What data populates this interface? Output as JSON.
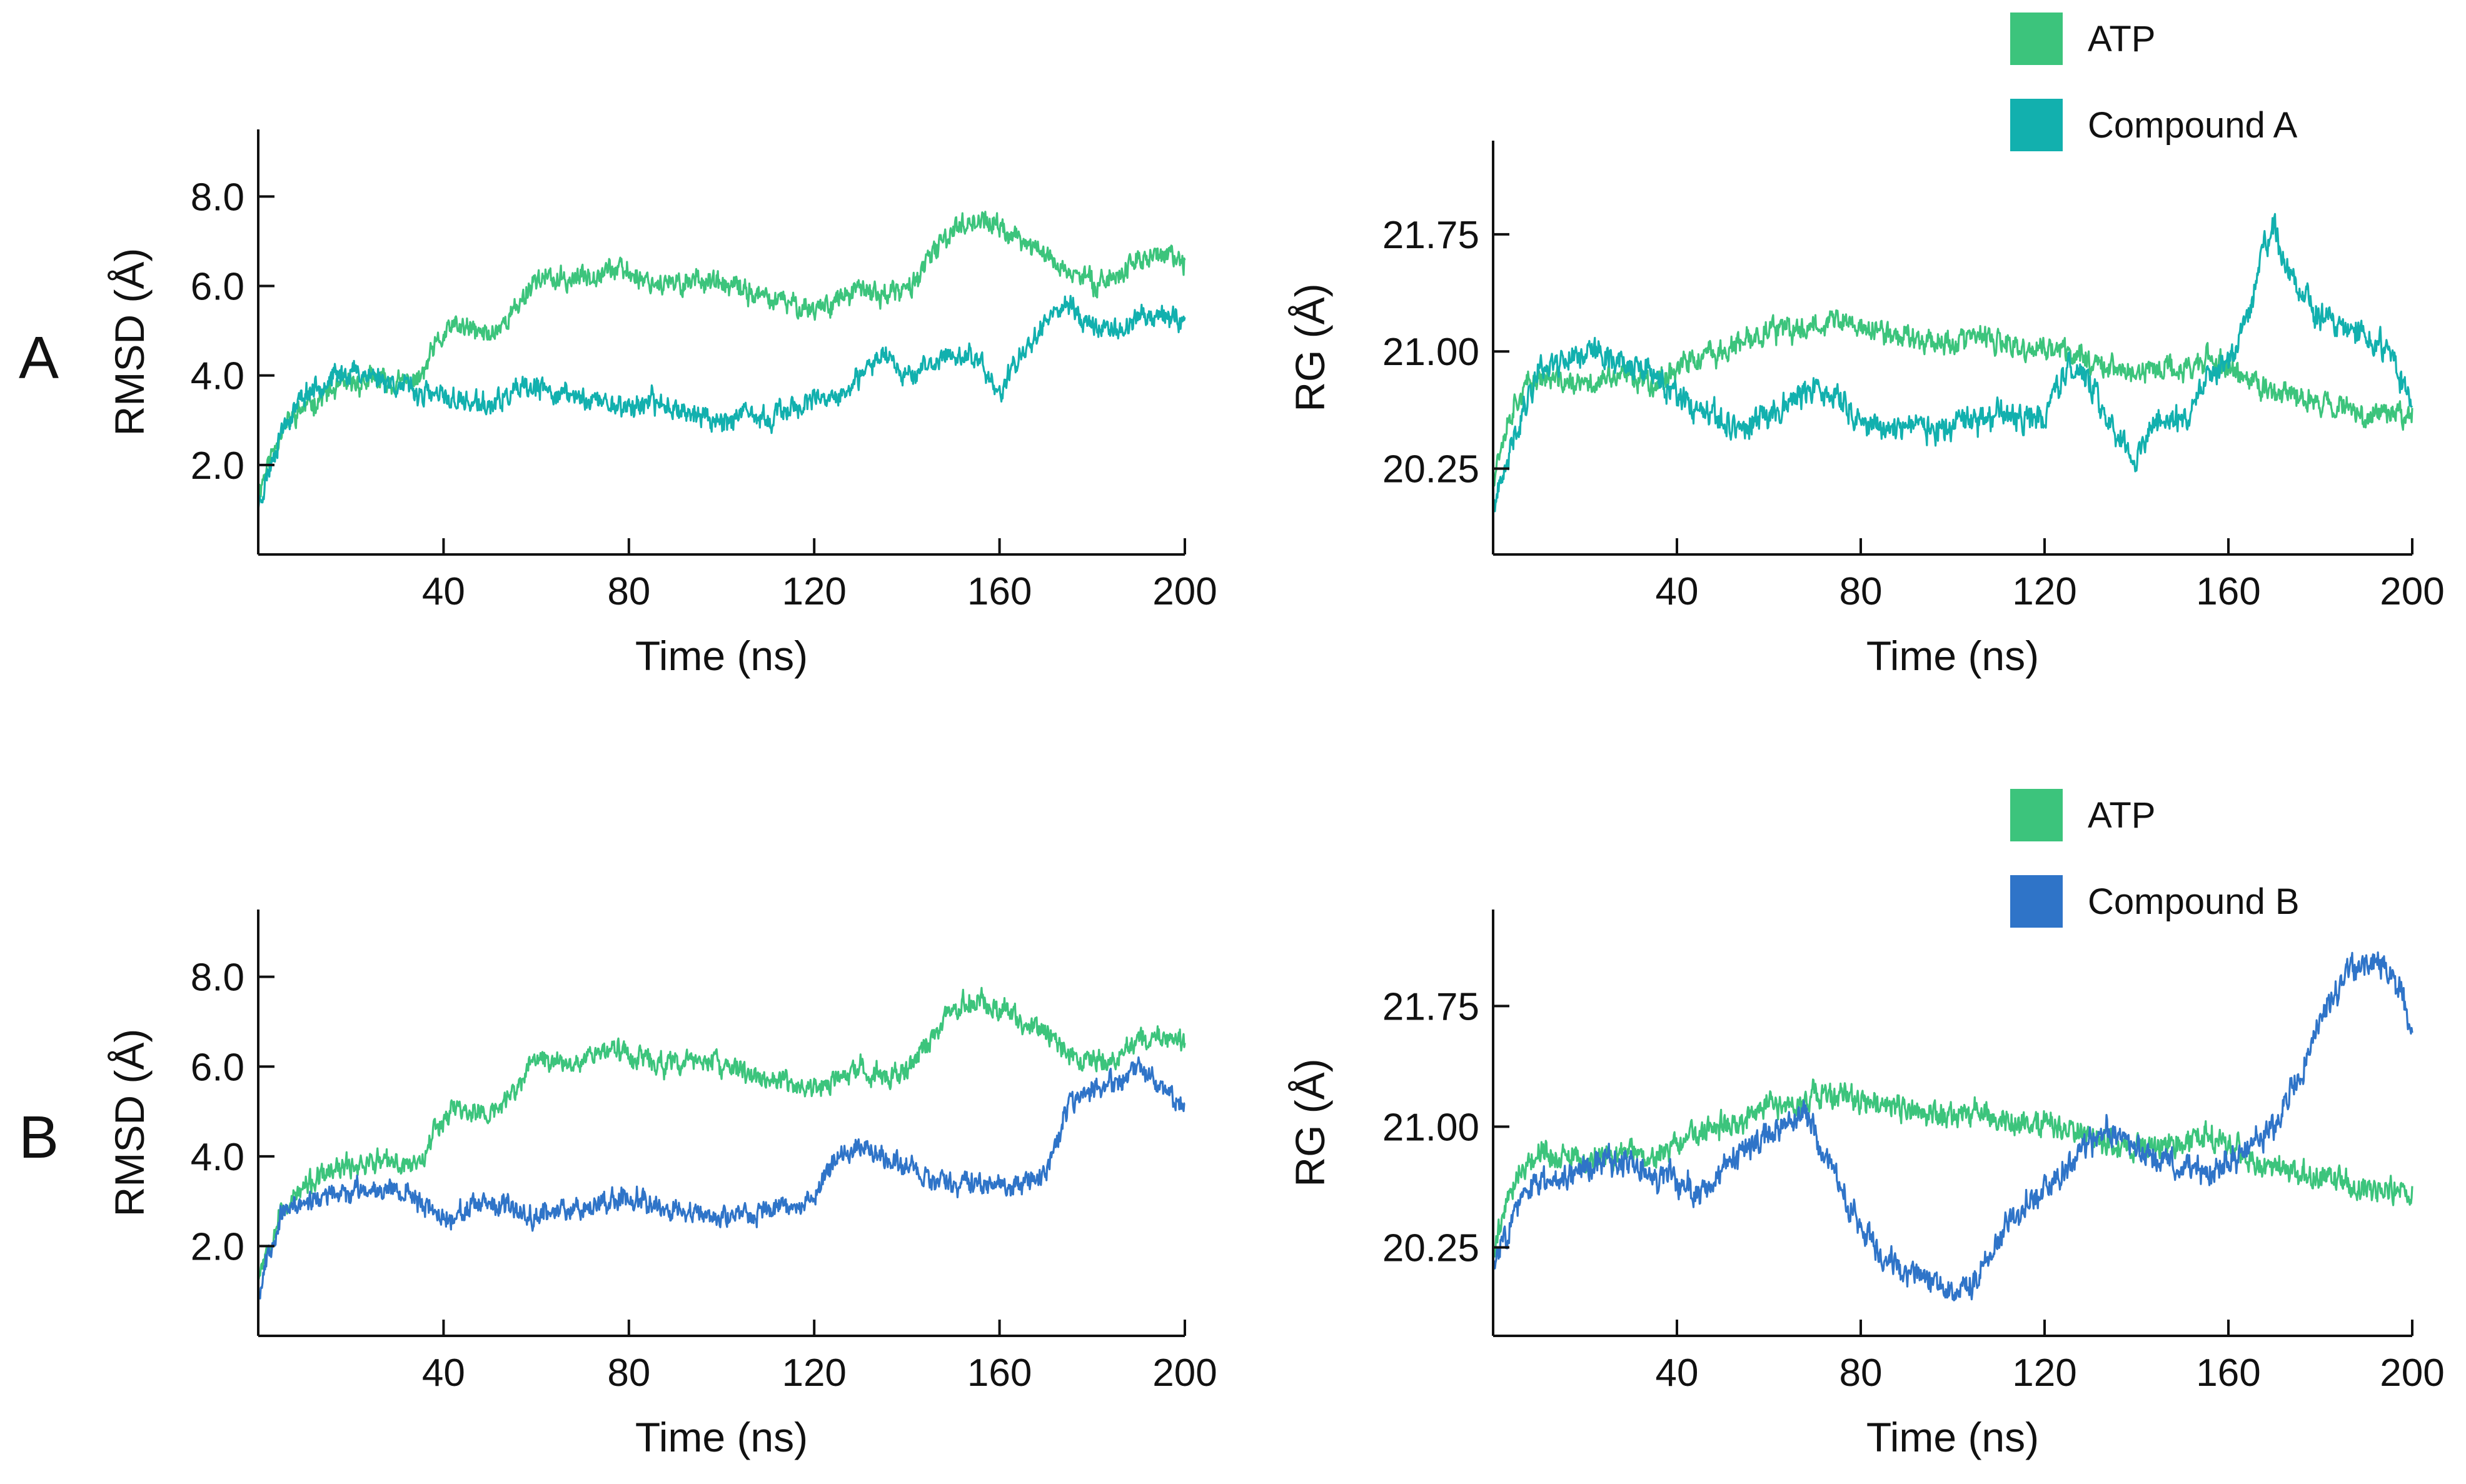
{
  "panel_labels": [
    "A",
    "B"
  ],
  "colors": {
    "atp": "#3cc47c",
    "compound_a": "#12b0ae",
    "compound_b": "#2f74c8"
  },
  "legends": [
    {
      "items": [
        {
          "label": "ATP",
          "color": "#3cc47c"
        },
        {
          "label": "Compound A",
          "color": "#12b0ae"
        }
      ]
    },
    {
      "items": [
        {
          "label": "ATP",
          "color": "#3cc47c"
        },
        {
          "label": "Compound B",
          "color": "#2f74c8"
        }
      ]
    }
  ],
  "chart_data": [
    {
      "type": "line",
      "title": "",
      "xlabel": "Time (ns)",
      "ylabel": "RMSD (Å)",
      "xlim": [
        0,
        200
      ],
      "ylim": [
        0,
        9.5
      ],
      "xticks": [
        40,
        80,
        120,
        160,
        200
      ],
      "xtick_labels": [
        "40",
        "80",
        "120",
        "160",
        "200"
      ],
      "yticks": [
        2.0,
        4.0,
        6.0,
        8.0
      ],
      "ytick_labels": [
        "2.0",
        "4.0",
        "6.0",
        "8.0"
      ],
      "series": [
        {
          "name": "ATP",
          "color": "#3cc47c",
          "noise": 0.32,
          "seed": 11,
          "x": [
            0,
            2,
            5,
            10,
            15,
            20,
            25,
            30,
            35,
            38,
            42,
            46,
            50,
            55,
            60,
            65,
            70,
            75,
            80,
            85,
            90,
            95,
            100,
            105,
            110,
            115,
            120,
            125,
            130,
            135,
            140,
            145,
            150,
            155,
            160,
            165,
            170,
            175,
            180,
            185,
            190,
            195,
            200
          ],
          "y": [
            1.4,
            2.0,
            2.8,
            3.3,
            3.6,
            3.8,
            3.9,
            3.8,
            3.9,
            4.6,
            5.1,
            5.0,
            4.9,
            5.4,
            6.2,
            6.1,
            6.2,
            6.4,
            6.3,
            6.1,
            6.0,
            6.2,
            6.0,
            5.9,
            5.7,
            5.6,
            5.5,
            5.7,
            5.9,
            5.8,
            5.9,
            6.6,
            7.3,
            7.5,
            7.3,
            7.0,
            6.7,
            6.3,
            6.1,
            6.2,
            6.6,
            6.7,
            6.5
          ]
        },
        {
          "name": "Compound A",
          "color": "#12b0ae",
          "noise": 0.32,
          "seed": 23,
          "x": [
            0,
            2,
            5,
            10,
            15,
            20,
            25,
            30,
            35,
            40,
            45,
            50,
            55,
            60,
            65,
            70,
            75,
            80,
            85,
            90,
            95,
            100,
            105,
            110,
            115,
            120,
            125,
            130,
            135,
            140,
            145,
            150,
            155,
            160,
            165,
            170,
            175,
            180,
            185,
            190,
            195,
            200
          ],
          "y": [
            1.1,
            1.8,
            2.8,
            3.6,
            3.9,
            4.1,
            4.0,
            3.8,
            3.6,
            3.5,
            3.4,
            3.3,
            3.6,
            3.7,
            3.6,
            3.5,
            3.4,
            3.3,
            3.4,
            3.3,
            3.1,
            3.0,
            3.1,
            3.0,
            3.3,
            3.4,
            3.5,
            3.9,
            4.6,
            4.0,
            4.2,
            4.5,
            4.4,
            3.6,
            4.5,
            5.3,
            5.6,
            5.1,
            5.0,
            5.3,
            5.4,
            5.2
          ]
        }
      ]
    },
    {
      "type": "line",
      "title": "",
      "xlabel": "Time (ns)",
      "ylabel": "RG  (Å)",
      "xlim": [
        0,
        200
      ],
      "ylim": [
        19.7,
        22.35
      ],
      "xticks": [
        40,
        80,
        120,
        160,
        200
      ],
      "xtick_labels": [
        "40",
        "80",
        "120",
        "160",
        "200"
      ],
      "yticks": [
        20.25,
        21.0,
        21.75
      ],
      "ytick_labels": [
        "20.25",
        "21.00",
        "21.75"
      ],
      "series": [
        {
          "name": "ATP",
          "color": "#3cc47c",
          "noise": 0.1,
          "seed": 37,
          "x": [
            0,
            2,
            5,
            10,
            15,
            20,
            25,
            30,
            35,
            40,
            45,
            50,
            55,
            60,
            65,
            70,
            75,
            80,
            85,
            90,
            95,
            100,
            105,
            110,
            115,
            120,
            125,
            130,
            135,
            140,
            145,
            150,
            155,
            160,
            165,
            170,
            175,
            180,
            185,
            190,
            195,
            200
          ],
          "y": [
            20.2,
            20.45,
            20.7,
            20.85,
            20.8,
            20.78,
            20.82,
            20.85,
            20.8,
            20.9,
            20.95,
            21.0,
            21.05,
            21.15,
            21.12,
            21.18,
            21.2,
            21.15,
            21.12,
            21.1,
            21.08,
            21.05,
            21.1,
            21.05,
            21.0,
            21.02,
            21.0,
            20.95,
            20.9,
            20.85,
            20.9,
            20.88,
            20.95,
            20.9,
            20.8,
            20.75,
            20.7,
            20.68,
            20.65,
            20.6,
            20.62,
            20.6
          ]
        },
        {
          "name": "Compound A",
          "color": "#12b0ae",
          "noise": 0.11,
          "seed": 41,
          "x": [
            0,
            2,
            5,
            10,
            15,
            20,
            25,
            30,
            35,
            40,
            45,
            50,
            55,
            60,
            65,
            70,
            75,
            80,
            85,
            90,
            95,
            100,
            105,
            110,
            115,
            120,
            125,
            130,
            135,
            140,
            145,
            150,
            155,
            160,
            165,
            168,
            170,
            172,
            175,
            180,
            185,
            190,
            195,
            200
          ],
          "y": [
            20.0,
            20.15,
            20.5,
            20.9,
            20.95,
            21.0,
            20.98,
            20.9,
            20.85,
            20.7,
            20.6,
            20.55,
            20.5,
            20.6,
            20.7,
            20.75,
            20.7,
            20.55,
            20.5,
            20.55,
            20.5,
            20.5,
            20.55,
            20.6,
            20.55,
            20.6,
            20.9,
            20.8,
            20.5,
            20.3,
            20.6,
            20.55,
            20.8,
            20.9,
            21.3,
            21.7,
            21.8,
            21.6,
            21.4,
            21.2,
            21.15,
            21.1,
            21.0,
            20.65
          ]
        }
      ]
    },
    {
      "type": "line",
      "title": "",
      "xlabel": "Time (ns)",
      "ylabel": "RMSD (Å)",
      "xlim": [
        0,
        200
      ],
      "ylim": [
        0,
        9.5
      ],
      "xticks": [
        40,
        80,
        120,
        160,
        200
      ],
      "xtick_labels": [
        "40",
        "80",
        "120",
        "160",
        "200"
      ],
      "yticks": [
        2.0,
        4.0,
        6.0,
        8.0
      ],
      "ytick_labels": [
        "2.0",
        "4.0",
        "6.0",
        "8.0"
      ],
      "series": [
        {
          "name": "ATP",
          "color": "#3cc47c",
          "noise": 0.32,
          "seed": 53,
          "x": [
            0,
            2,
            5,
            10,
            15,
            20,
            25,
            30,
            35,
            38,
            42,
            46,
            50,
            55,
            60,
            65,
            70,
            75,
            80,
            85,
            90,
            95,
            100,
            105,
            110,
            115,
            120,
            125,
            130,
            135,
            140,
            145,
            150,
            155,
            160,
            165,
            170,
            175,
            180,
            185,
            190,
            195,
            200
          ],
          "y": [
            1.4,
            2.0,
            2.8,
            3.3,
            3.6,
            3.8,
            3.9,
            3.8,
            3.9,
            4.6,
            5.1,
            5.0,
            4.9,
            5.4,
            6.2,
            6.1,
            6.2,
            6.4,
            6.3,
            6.1,
            6.0,
            6.2,
            6.0,
            5.9,
            5.7,
            5.6,
            5.5,
            5.7,
            5.9,
            5.8,
            5.9,
            6.6,
            7.3,
            7.5,
            7.3,
            7.0,
            6.7,
            6.3,
            6.1,
            6.2,
            6.6,
            6.7,
            6.5
          ]
        },
        {
          "name": "Compound B",
          "color": "#2f74c8",
          "noise": 0.3,
          "seed": 67,
          "x": [
            0,
            2,
            5,
            10,
            15,
            20,
            25,
            30,
            35,
            40,
            45,
            50,
            55,
            60,
            65,
            70,
            75,
            80,
            85,
            90,
            95,
            100,
            105,
            110,
            115,
            120,
            125,
            130,
            135,
            140,
            145,
            150,
            155,
            160,
            165,
            170,
            175,
            180,
            185,
            190,
            195,
            200
          ],
          "y": [
            0.9,
            1.8,
            2.7,
            3.0,
            3.1,
            3.2,
            3.3,
            3.3,
            3.0,
            2.6,
            2.8,
            2.9,
            2.8,
            2.7,
            2.8,
            2.9,
            3.0,
            3.1,
            3.0,
            2.8,
            2.7,
            2.6,
            2.7,
            2.8,
            2.9,
            3.1,
            4.0,
            4.2,
            4.0,
            3.8,
            3.5,
            3.4,
            3.4,
            3.3,
            3.4,
            3.6,
            5.2,
            5.5,
            5.6,
            6.0,
            5.6,
            5.0
          ]
        }
      ]
    },
    {
      "type": "line",
      "title": "",
      "xlabel": "Time (ns)",
      "ylabel": "RG  (Å)",
      "xlim": [
        0,
        200
      ],
      "ylim": [
        19.7,
        22.35
      ],
      "xticks": [
        40,
        80,
        120,
        160,
        200
      ],
      "xtick_labels": [
        "40",
        "80",
        "120",
        "160",
        "200"
      ],
      "yticks": [
        20.25,
        21.0,
        21.75
      ],
      "ytick_labels": [
        "20.25",
        "21.00",
        "21.75"
      ],
      "series": [
        {
          "name": "ATP",
          "color": "#3cc47c",
          "noise": 0.1,
          "seed": 79,
          "x": [
            0,
            2,
            5,
            10,
            15,
            20,
            25,
            30,
            35,
            40,
            45,
            50,
            55,
            60,
            65,
            70,
            75,
            80,
            85,
            90,
            95,
            100,
            105,
            110,
            115,
            120,
            125,
            130,
            135,
            140,
            145,
            150,
            155,
            160,
            165,
            170,
            175,
            180,
            185,
            190,
            195,
            200
          ],
          "y": [
            20.2,
            20.45,
            20.7,
            20.85,
            20.8,
            20.78,
            20.82,
            20.85,
            20.8,
            20.9,
            20.95,
            21.0,
            21.05,
            21.15,
            21.12,
            21.18,
            21.2,
            21.15,
            21.12,
            21.1,
            21.08,
            21.05,
            21.1,
            21.05,
            21.0,
            21.02,
            21.0,
            20.95,
            20.9,
            20.85,
            20.9,
            20.88,
            20.95,
            20.9,
            20.8,
            20.75,
            20.7,
            20.68,
            20.65,
            20.6,
            20.62,
            20.6
          ]
        },
        {
          "name": "Compound B",
          "color": "#2f74c8",
          "noise": 0.11,
          "seed": 83,
          "x": [
            0,
            2,
            5,
            10,
            15,
            20,
            25,
            30,
            35,
            40,
            45,
            50,
            55,
            60,
            65,
            68,
            72,
            76,
            80,
            85,
            90,
            95,
            100,
            105,
            110,
            115,
            120,
            125,
            130,
            135,
            140,
            145,
            150,
            155,
            160,
            165,
            170,
            175,
            180,
            185,
            190,
            195,
            198,
            200
          ],
          "y": [
            20.1,
            20.3,
            20.5,
            20.65,
            20.7,
            20.75,
            20.8,
            20.75,
            20.7,
            20.65,
            20.6,
            20.7,
            20.85,
            20.95,
            21.05,
            21.1,
            20.8,
            20.6,
            20.4,
            20.2,
            20.1,
            20.05,
            20.0,
            20.05,
            20.3,
            20.5,
            20.6,
            20.75,
            20.9,
            21.0,
            20.85,
            20.8,
            20.75,
            20.7,
            20.8,
            20.9,
            21.0,
            21.3,
            21.65,
            21.9,
            22.05,
            21.95,
            21.8,
            21.6
          ]
        }
      ]
    }
  ]
}
